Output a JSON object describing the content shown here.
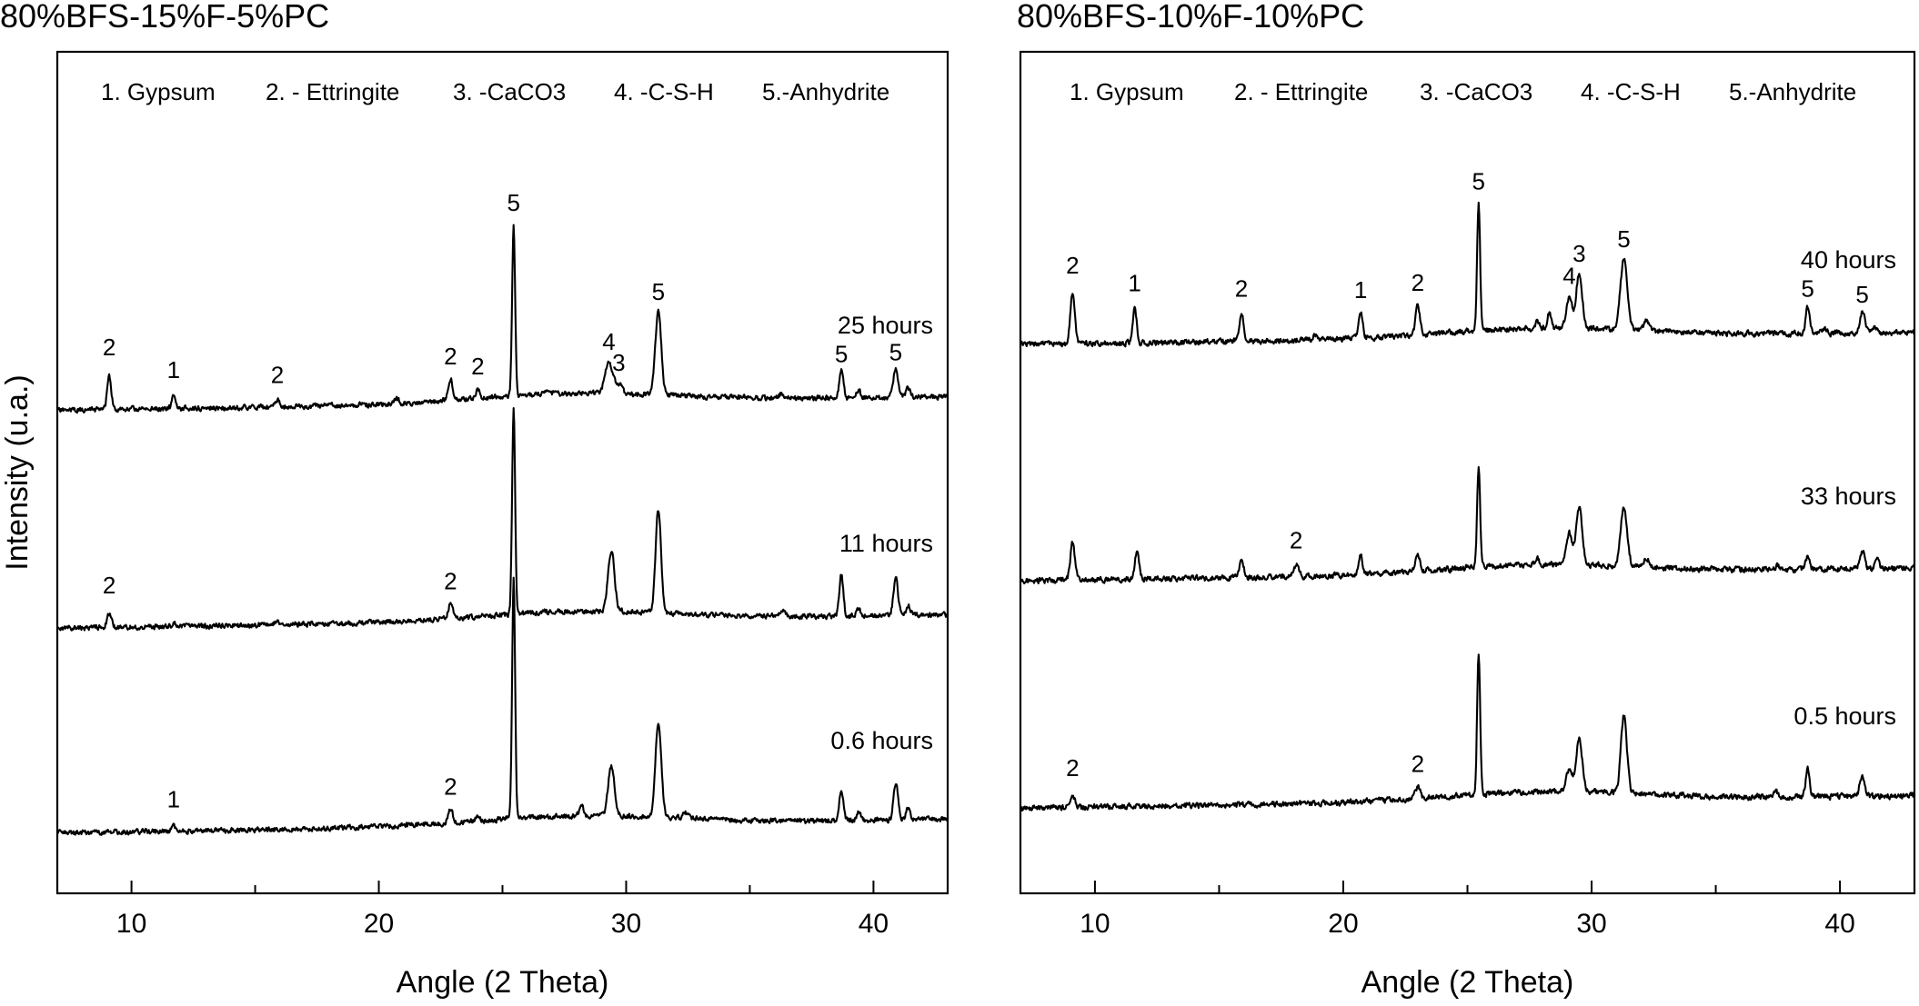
{
  "y_axis_label": "Intensity (u.a.)",
  "chart_data": [
    {
      "type": "line",
      "title": "80%BFS-15%F-5%PC",
      "xlabel": "Angle (2 Theta)",
      "ylabel": "Intensity (u.a.)",
      "xlim": [
        7,
        43
      ],
      "xticks": [
        10,
        20,
        30,
        40
      ],
      "legend": [
        "1. Gypsum",
        "2. - Ettringite",
        "3. -CaCO3",
        "4. -C-S-H",
        "5.-Anhydrite"
      ],
      "grid": false,
      "series": [
        {
          "name": "25 hours",
          "baseline": 0.72,
          "noise": 0.9,
          "seed": 11,
          "peaks": [
            {
              "x": 9.1,
              "h": 0.35,
              "w": 0.08,
              "label": "2"
            },
            {
              "x": 11.7,
              "h": 0.12,
              "w": 0.07,
              "label": "1"
            },
            {
              "x": 15.9,
              "h": 0.07,
              "w": 0.1,
              "label": "2"
            },
            {
              "x": 20.7,
              "h": 0.05,
              "w": 0.1,
              "label": ""
            },
            {
              "x": 22.9,
              "h": 0.22,
              "w": 0.09,
              "label": "2"
            },
            {
              "x": 24.0,
              "h": 0.1,
              "w": 0.08,
              "label": "2"
            },
            {
              "x": 25.45,
              "h": 1.75,
              "w": 0.06,
              "label": "5"
            },
            {
              "x": 26.8,
              "h": 0.05,
              "w": 0.1,
              "label": ""
            },
            {
              "x": 29.3,
              "h": 0.32,
              "w": 0.15,
              "label": "4"
            },
            {
              "x": 29.7,
              "h": 0.1,
              "w": 0.12,
              "label": "3"
            },
            {
              "x": 31.3,
              "h": 0.85,
              "w": 0.12,
              "label": "5"
            },
            {
              "x": 36.3,
              "h": 0.05,
              "w": 0.1,
              "label": ""
            },
            {
              "x": 38.7,
              "h": 0.28,
              "w": 0.08,
              "label": "5"
            },
            {
              "x": 39.4,
              "h": 0.08,
              "w": 0.08,
              "label": ""
            },
            {
              "x": 40.9,
              "h": 0.3,
              "w": 0.1,
              "label": "5"
            },
            {
              "x": 41.4,
              "h": 0.1,
              "w": 0.08,
              "label": ""
            }
          ]
        },
        {
          "name": "11 hours",
          "baseline": 0.34,
          "noise": 0.9,
          "seed": 23,
          "peaks": [
            {
              "x": 9.1,
              "h": 0.15,
              "w": 0.09,
              "label": "2"
            },
            {
              "x": 11.7,
              "h": 0.04,
              "w": 0.08,
              "label": ""
            },
            {
              "x": 15.9,
              "h": 0.04,
              "w": 0.1,
              "label": ""
            },
            {
              "x": 22.9,
              "h": 0.15,
              "w": 0.09,
              "label": "2"
            },
            {
              "x": 25.45,
              "h": 2.1,
              "w": 0.06,
              "label": ""
            },
            {
              "x": 29.4,
              "h": 0.62,
              "w": 0.13,
              "label": ""
            },
            {
              "x": 31.3,
              "h": 1.05,
              "w": 0.11,
              "label": ""
            },
            {
              "x": 36.3,
              "h": 0.06,
              "w": 0.1,
              "label": ""
            },
            {
              "x": 38.7,
              "h": 0.42,
              "w": 0.08,
              "label": ""
            },
            {
              "x": 39.4,
              "h": 0.08,
              "w": 0.08,
              "label": ""
            },
            {
              "x": 40.9,
              "h": 0.38,
              "w": 0.09,
              "label": ""
            },
            {
              "x": 41.4,
              "h": 0.1,
              "w": 0.08,
              "label": ""
            }
          ]
        },
        {
          "name": "0.6 hours",
          "baseline": 0.0,
          "noise": 0.9,
          "seed": 37,
          "peaks": [
            {
              "x": 11.7,
              "h": 0.05,
              "w": 0.08,
              "label": "1"
            },
            {
              "x": 22.9,
              "h": 0.14,
              "w": 0.09,
              "label": "2"
            },
            {
              "x": 24.0,
              "h": 0.05,
              "w": 0.08,
              "label": ""
            },
            {
              "x": 25.45,
              "h": 2.45,
              "w": 0.06,
              "label": ""
            },
            {
              "x": 28.2,
              "h": 0.1,
              "w": 0.08,
              "label": ""
            },
            {
              "x": 29.4,
              "h": 0.5,
              "w": 0.13,
              "label": ""
            },
            {
              "x": 31.3,
              "h": 0.95,
              "w": 0.12,
              "label": ""
            },
            {
              "x": 32.4,
              "h": 0.06,
              "w": 0.1,
              "label": ""
            },
            {
              "x": 38.7,
              "h": 0.32,
              "w": 0.08,
              "label": ""
            },
            {
              "x": 39.4,
              "h": 0.08,
              "w": 0.08,
              "label": ""
            },
            {
              "x": 40.9,
              "h": 0.38,
              "w": 0.09,
              "label": ""
            },
            {
              "x": 41.4,
              "h": 0.12,
              "w": 0.08,
              "label": ""
            }
          ]
        }
      ]
    },
    {
      "type": "line",
      "title": "80%BFS-10%F-10%PC",
      "xlabel": "Angle (2 Theta)",
      "ylabel": "",
      "xlim": [
        7,
        43
      ],
      "xticks": [
        10,
        20,
        30,
        40
      ],
      "legend": [
        "1. Gypsum",
        "2. - Ettringite",
        "3. -CaCO3",
        "4. -C-S-H",
        "5.-Anhydrite"
      ],
      "grid": false,
      "series": [
        {
          "name": "40 hours",
          "baseline": 0.78,
          "noise": 1.0,
          "seed": 53,
          "peaks": [
            {
              "x": 9.1,
              "h": 0.52,
              "w": 0.09,
              "label": "2"
            },
            {
              "x": 11.6,
              "h": 0.34,
              "w": 0.08,
              "label": "1"
            },
            {
              "x": 15.9,
              "h": 0.28,
              "w": 0.09,
              "label": "2"
            },
            {
              "x": 18.9,
              "h": 0.06,
              "w": 0.08,
              "label": ""
            },
            {
              "x": 20.7,
              "h": 0.25,
              "w": 0.08,
              "label": "1"
            },
            {
              "x": 23.0,
              "h": 0.3,
              "w": 0.09,
              "label": "2"
            },
            {
              "x": 25.45,
              "h": 1.3,
              "w": 0.06,
              "label": "5"
            },
            {
              "x": 27.8,
              "h": 0.06,
              "w": 0.08,
              "label": ""
            },
            {
              "x": 28.3,
              "h": 0.15,
              "w": 0.08,
              "label": ""
            },
            {
              "x": 29.1,
              "h": 0.32,
              "w": 0.12,
              "label": "4"
            },
            {
              "x": 29.5,
              "h": 0.55,
              "w": 0.12,
              "label": "3"
            },
            {
              "x": 31.3,
              "h": 0.72,
              "w": 0.14,
              "label": "5"
            },
            {
              "x": 32.2,
              "h": 0.1,
              "w": 0.1,
              "label": ""
            },
            {
              "x": 38.7,
              "h": 0.28,
              "w": 0.08,
              "label": "5"
            },
            {
              "x": 39.4,
              "h": 0.06,
              "w": 0.08,
              "label": ""
            },
            {
              "x": 40.9,
              "h": 0.22,
              "w": 0.1,
              "label": "5"
            },
            {
              "x": 41.4,
              "h": 0.06,
              "w": 0.08,
              "label": ""
            }
          ]
        },
        {
          "name": "33 hours",
          "baseline": 0.37,
          "noise": 1.0,
          "seed": 71,
          "peaks": [
            {
              "x": 9.1,
              "h": 0.38,
              "w": 0.09,
              "label": ""
            },
            {
              "x": 11.7,
              "h": 0.3,
              "w": 0.08,
              "label": ""
            },
            {
              "x": 15.9,
              "h": 0.18,
              "w": 0.09,
              "label": ""
            },
            {
              "x": 18.1,
              "h": 0.12,
              "w": 0.09,
              "label": "2"
            },
            {
              "x": 20.7,
              "h": 0.18,
              "w": 0.08,
              "label": ""
            },
            {
              "x": 23.0,
              "h": 0.18,
              "w": 0.09,
              "label": ""
            },
            {
              "x": 25.45,
              "h": 1.0,
              "w": 0.06,
              "label": ""
            },
            {
              "x": 27.8,
              "h": 0.06,
              "w": 0.08,
              "label": ""
            },
            {
              "x": 29.1,
              "h": 0.32,
              "w": 0.12,
              "label": ""
            },
            {
              "x": 29.5,
              "h": 0.58,
              "w": 0.12,
              "label": ""
            },
            {
              "x": 31.3,
              "h": 0.6,
              "w": 0.13,
              "label": ""
            },
            {
              "x": 32.2,
              "h": 0.1,
              "w": 0.1,
              "label": ""
            },
            {
              "x": 37.5,
              "h": 0.05,
              "w": 0.08,
              "label": ""
            },
            {
              "x": 38.7,
              "h": 0.14,
              "w": 0.08,
              "label": ""
            },
            {
              "x": 40.9,
              "h": 0.18,
              "w": 0.1,
              "label": ""
            },
            {
              "x": 41.5,
              "h": 0.1,
              "w": 0.08,
              "label": ""
            }
          ]
        },
        {
          "name": "0.5 hours",
          "baseline": 0.0,
          "noise": 1.0,
          "seed": 89,
          "peaks": [
            {
              "x": 9.1,
              "h": 0.12,
              "w": 0.09,
              "label": "2"
            },
            {
              "x": 23.0,
              "h": 0.12,
              "w": 0.09,
              "label": "2"
            },
            {
              "x": 25.45,
              "h": 1.45,
              "w": 0.06,
              "label": ""
            },
            {
              "x": 29.1,
              "h": 0.22,
              "w": 0.12,
              "label": ""
            },
            {
              "x": 29.5,
              "h": 0.55,
              "w": 0.12,
              "label": ""
            },
            {
              "x": 31.3,
              "h": 0.8,
              "w": 0.12,
              "label": ""
            },
            {
              "x": 37.4,
              "h": 0.05,
              "w": 0.08,
              "label": ""
            },
            {
              "x": 38.7,
              "h": 0.28,
              "w": 0.08,
              "label": ""
            },
            {
              "x": 40.9,
              "h": 0.2,
              "w": 0.1,
              "label": ""
            }
          ]
        }
      ]
    }
  ]
}
